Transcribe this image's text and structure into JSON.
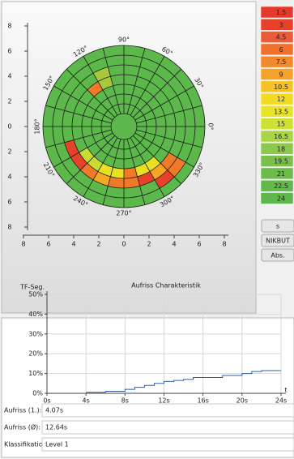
{
  "polar_chart": {
    "type": "polar",
    "xlim": [
      -8,
      8
    ],
    "ylim": [
      -8,
      8
    ],
    "yticks": [
      8,
      6,
      4,
      2,
      0,
      {
        "value": -2,
        "label": "2"
      },
      {
        "value": -4,
        "label": "4"
      },
      {
        "value": -6,
        "label": "6"
      },
      {
        "value": -8,
        "label": "8"
      }
    ],
    "xticks": [
      {
        "value": -8,
        "label": "8"
      },
      {
        "value": -6,
        "label": "6"
      },
      {
        "value": -4,
        "label": "4"
      },
      {
        "value": -2,
        "label": "2"
      },
      0,
      2,
      4,
      6,
      8
    ],
    "angle_labels": [
      {
        "value": 90,
        "label": "90°"
      },
      {
        "value": 60,
        "label": "60°"
      },
      {
        "value": 30,
        "label": "30°"
      },
      {
        "value": 0,
        "label": "0°"
      },
      {
        "value": 330,
        "label": "330°"
      },
      {
        "value": 300,
        "label": "300°"
      },
      {
        "value": 270,
        "label": "270°"
      },
      {
        "value": 240,
        "label": "240°"
      },
      {
        "value": 210,
        "label": "210°"
      },
      {
        "value": 180,
        "label": "180°"
      },
      {
        "value": 150,
        "label": "150°"
      },
      {
        "value": 120,
        "label": "120°"
      }
    ],
    "base_color": "#5cb84a",
    "cells": [
      {
        "angle": 105,
        "ring": 5,
        "color": "#a8c83c"
      },
      {
        "angle": 105,
        "ring": 4,
        "color": "#a8c83c"
      },
      {
        "angle": 120,
        "ring": 4,
        "color": "#f07a28"
      },
      {
        "angle": 195,
        "ring": 5,
        "color": "#e8412a"
      },
      {
        "angle": 210,
        "ring": 5,
        "color": "#e8412a"
      },
      {
        "angle": 210,
        "ring": 4,
        "color": "#c8dc32"
      },
      {
        "angle": 225,
        "ring": 5,
        "color": "#f07a28"
      },
      {
        "angle": 225,
        "ring": 4,
        "color": "#c8dc32"
      },
      {
        "angle": 240,
        "ring": 5,
        "color": "#f5a623"
      },
      {
        "angle": 240,
        "ring": 4,
        "color": "#e8e020"
      },
      {
        "angle": 255,
        "ring": 5,
        "color": "#f07a28"
      },
      {
        "angle": 255,
        "ring": 4,
        "color": "#e8e020"
      },
      {
        "angle": 270,
        "ring": 5,
        "color": "#f07a28"
      },
      {
        "angle": 270,
        "ring": 4,
        "color": "#f07a28"
      },
      {
        "angle": 285,
        "ring": 5,
        "color": "#e8412a"
      },
      {
        "angle": 285,
        "ring": 4,
        "color": "#e8e020"
      },
      {
        "angle": 300,
        "ring": 6,
        "color": "#e8412a"
      },
      {
        "angle": 300,
        "ring": 5,
        "color": "#f5a623"
      },
      {
        "angle": 300,
        "ring": 4,
        "color": "#e8e020"
      },
      {
        "angle": 315,
        "ring": 6,
        "color": "#f07a28"
      },
      {
        "angle": 315,
        "ring": 5,
        "color": "#f07a28"
      }
    ]
  },
  "legend": [
    {
      "value": 1.5,
      "color": "#e53a2b"
    },
    {
      "value": 3,
      "color": "#e8412a"
    },
    {
      "value": 4.5,
      "color": "#ec5a38"
    },
    {
      "value": 6,
      "color": "#f0702c"
    },
    {
      "value": 7.5,
      "color": "#f28a2c"
    },
    {
      "value": 9,
      "color": "#f5a12a"
    },
    {
      "value": 10.5,
      "color": "#f7c228"
    },
    {
      "value": 12,
      "color": "#f2dc22"
    },
    {
      "value": 13.5,
      "color": "#e8e428"
    },
    {
      "value": 15,
      "color": "#cfe034"
    },
    {
      "value": 16.5,
      "color": "#a9d444"
    },
    {
      "value": 18,
      "color": "#8cc84c"
    },
    {
      "value": 19.5,
      "color": "#7cc04c"
    },
    {
      "value": 21,
      "color": "#6cbc4c"
    },
    {
      "value": 22.5,
      "color": "#62b84a"
    },
    {
      "value": 24,
      "color": "#5cb84a"
    }
  ],
  "buttons": [
    "s",
    "NIKBUT",
    "Abs."
  ],
  "line_chart": {
    "type": "line",
    "title": "Aufriss Charakteristik",
    "y_label": "TF-Seg.",
    "x_label": "t",
    "x": [
      4.07,
      4.07,
      6,
      6,
      8,
      8,
      9,
      9,
      10,
      10,
      11,
      11,
      12,
      12,
      13,
      13,
      14,
      14,
      15,
      15,
      18,
      18,
      20,
      20,
      21,
      21,
      22,
      22,
      24
    ],
    "y": [
      0,
      0.5,
      0.5,
      1,
      1,
      2,
      2,
      3,
      3,
      4,
      4,
      5,
      5,
      6,
      6,
      6.5,
      6.5,
      7,
      7,
      8,
      8,
      9,
      9,
      10,
      10,
      11,
      11,
      11.5,
      11.5
    ],
    "color": "#2e5fa8",
    "xlim": [
      0,
      24
    ],
    "ylim": [
      0,
      50
    ],
    "xticks": [
      {
        "value": 0,
        "label": "0s"
      },
      {
        "value": 4,
        "label": "4s"
      },
      {
        "value": 8,
        "label": "8s"
      },
      {
        "value": 12,
        "label": "12s"
      },
      {
        "value": 16,
        "label": "16s"
      },
      {
        "value": 20,
        "label": "20s"
      },
      {
        "value": 24,
        "label": "24s"
      }
    ],
    "yticks": [
      {
        "value": 0,
        "label": "0%"
      },
      {
        "value": 10,
        "label": "10%"
      },
      {
        "value": 20,
        "label": "20%"
      },
      {
        "value": 30,
        "label": "30%"
      },
      {
        "value": 40,
        "label": "40%"
      },
      {
        "value": 50,
        "label": "50%"
      }
    ],
    "grid": true
  },
  "fields": [
    {
      "label": "Aufriss (1.):",
      "value": "4.07s"
    },
    {
      "label": "Aufriss (Ø):",
      "value": "12.64s"
    },
    {
      "label": "Klassifikation:",
      "value": "Level 1"
    }
  ]
}
